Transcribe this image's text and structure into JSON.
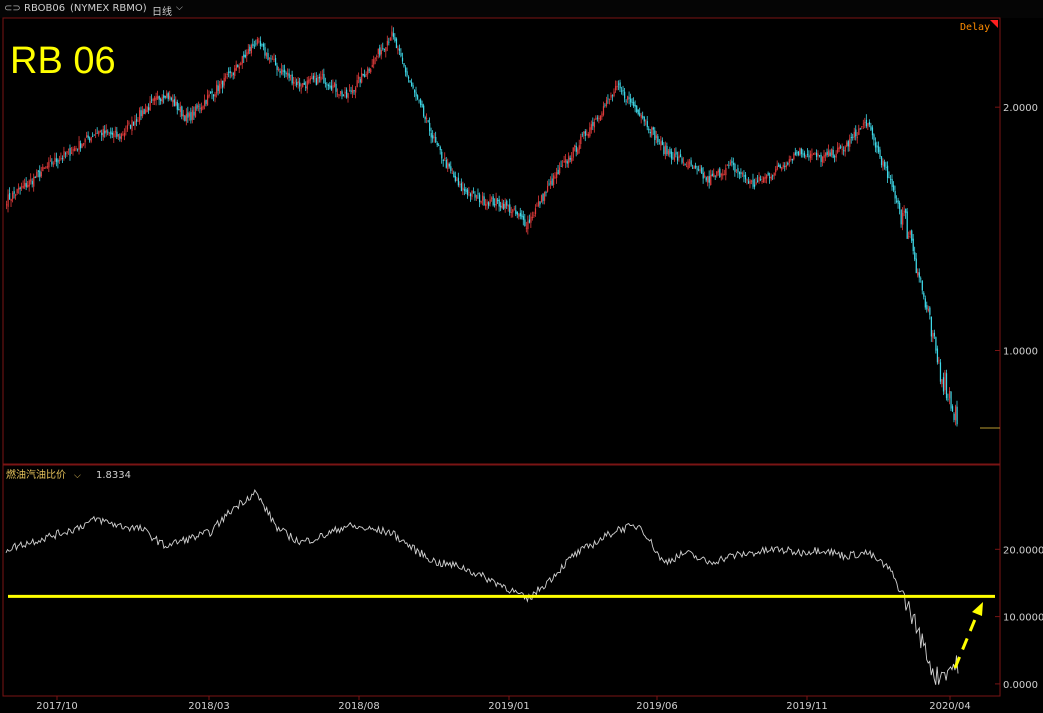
{
  "header": {
    "symbol": "RBOB06",
    "exchange": "(NYMEX RBMO)",
    "period": "日线",
    "link_icon": "link-icon",
    "dropdown_icon": "chevron-down-icon"
  },
  "overlay_title": "RB 06",
  "delay_label": "Delay",
  "colors": {
    "background": "#000000",
    "up": "#e23b3b",
    "down": "#3fd8e8",
    "border": "#7a1414",
    "annotation": "#ffff00",
    "ratio_line": "#d0d0d0"
  },
  "chart_data": [
    {
      "type": "candlestick",
      "title": "RB 06",
      "x_ticks": [
        "2017/10",
        "2018/03",
        "2018/08",
        "2019/01",
        "2019/06",
        "2019/11",
        "2020/04"
      ],
      "y_ticks": [
        "2.0000",
        "1.0000"
      ],
      "ylim": [
        0.55,
        2.35
      ],
      "series": [
        {
          "name": "RBOB06",
          "close": [
            1.62,
            1.69,
            1.77,
            1.83,
            1.9,
            1.88,
            1.98,
            2.06,
            1.95,
            2.05,
            2.14,
            2.27,
            2.16,
            2.09,
            2.12,
            2.04,
            2.16,
            2.3,
            2.06,
            1.84,
            1.67,
            1.62,
            1.6,
            1.52,
            1.68,
            1.81,
            1.95,
            2.08,
            1.98,
            1.83,
            1.77,
            1.7,
            1.76,
            1.68,
            1.74,
            1.82,
            1.79,
            1.83,
            1.94,
            1.7,
            1.46,
            1.0,
            0.72
          ]
        }
      ]
    },
    {
      "type": "line",
      "title": "燃油汽油比价",
      "value_label": "1.8334",
      "y_ticks": [
        "20.0000",
        "10.0000",
        "0.0000"
      ],
      "ylim": [
        -1.5,
        30
      ],
      "series": [
        {
          "name": "燃油汽油比价",
          "values": [
            20.0,
            21.0,
            22.0,
            23.0,
            24.5,
            23.5,
            23.0,
            20.5,
            21.5,
            22.5,
            26.0,
            28.5,
            23.0,
            21.0,
            22.0,
            23.5,
            23.0,
            22.5,
            20.0,
            18.0,
            17.5,
            16.0,
            14.5,
            12.5,
            15.5,
            19.0,
            21.0,
            23.0,
            23.5,
            18.0,
            19.5,
            18.0,
            19.0,
            19.5,
            20.0,
            19.5,
            20.0,
            19.0,
            19.5,
            17.0,
            10.0,
            1.0,
            3.0
          ]
        }
      ],
      "annotation": {
        "type": "horizontal-line",
        "y": 13.0,
        "color": "#ffff00"
      }
    }
  ]
}
